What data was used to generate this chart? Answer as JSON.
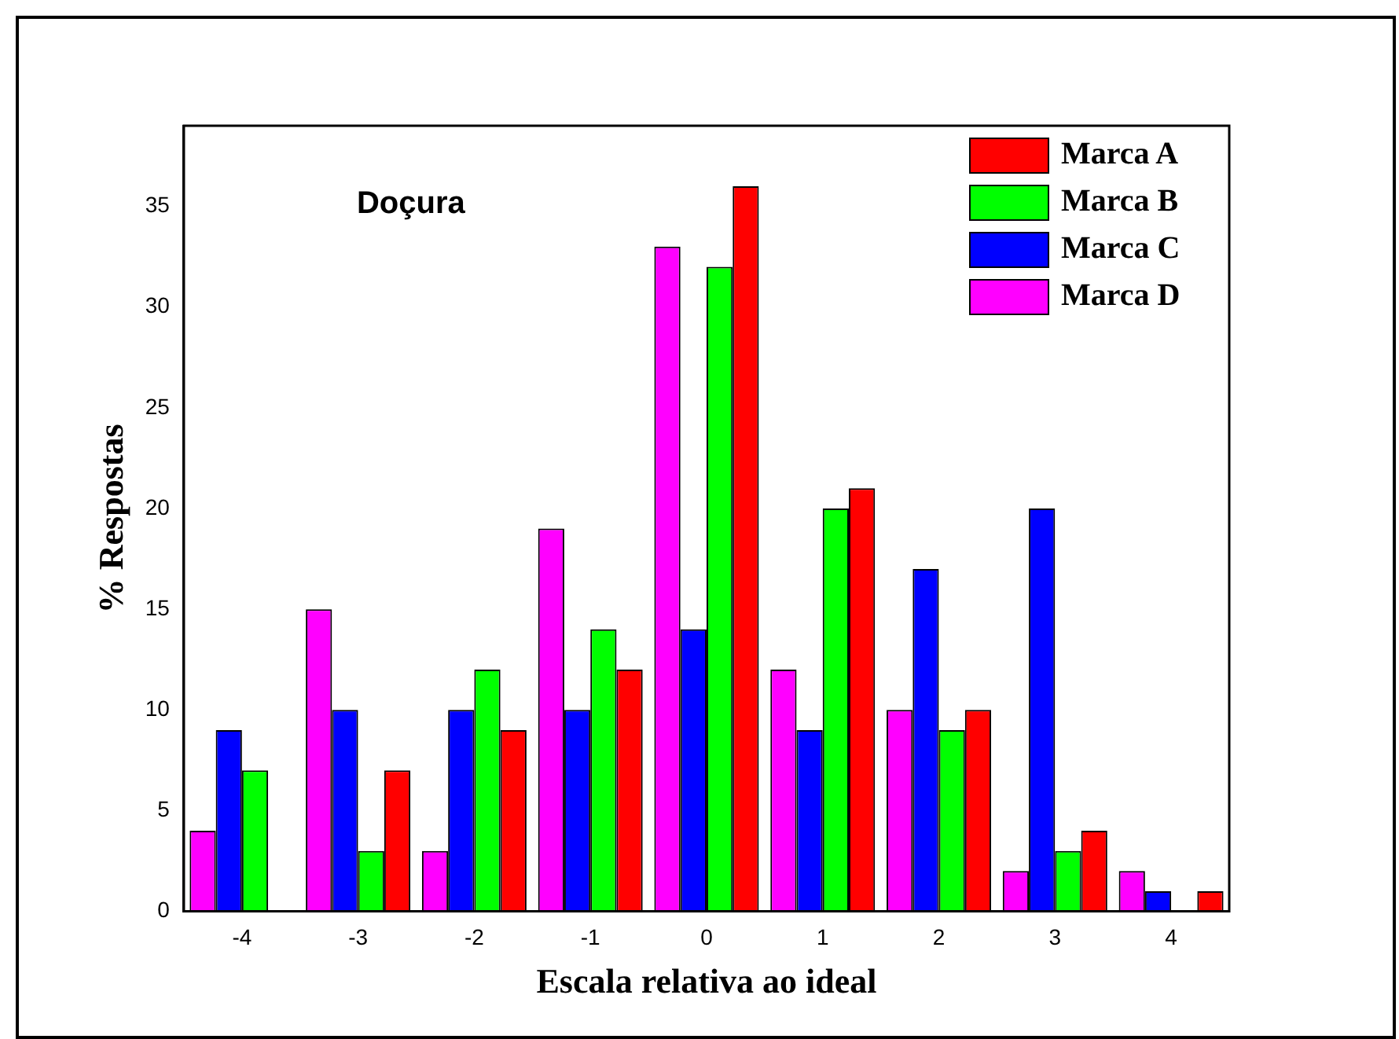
{
  "chart_data": {
    "type": "bar",
    "xlabel": "Escala relativa ao ideal",
    "ylabel": "% Respostas",
    "annotations": [
      "Doçura"
    ],
    "categories": [
      "-4",
      "-3",
      "-2",
      "-1",
      "0",
      "1",
      "2",
      "3",
      "4"
    ],
    "series": [
      {
        "name": "Marca A",
        "color": "#ff0000",
        "values": [
          null,
          7,
          9,
          12,
          36,
          21,
          10,
          4,
          1
        ]
      },
      {
        "name": "Marca B",
        "color": "#00ff00",
        "values": [
          7,
          3,
          12,
          14,
          32,
          20,
          9,
          3,
          null
        ]
      },
      {
        "name": "Marca C",
        "color": "#0000ff",
        "values": [
          9,
          10,
          10,
          10,
          14,
          9,
          17,
          20,
          1
        ]
      },
      {
        "name": "Marca D",
        "color": "#ff00ff",
        "values": [
          4,
          15,
          3,
          19,
          33,
          12,
          10,
          2,
          2
        ]
      }
    ],
    "ylim": [
      0,
      39
    ],
    "yticks": [
      0,
      5,
      10,
      15,
      20,
      25,
      30,
      35
    ],
    "grid": false,
    "legend": "top right"
  }
}
